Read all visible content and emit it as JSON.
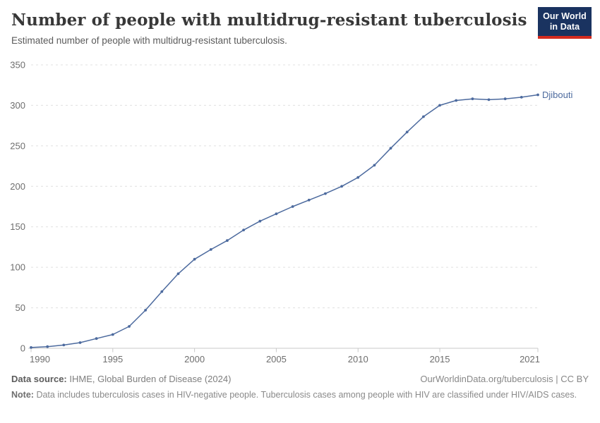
{
  "header": {
    "title": "Number of people with multidrug-resistant tuberculosis",
    "subtitle": "Estimated number of people with multidrug-resistant tuberculosis.",
    "logo": {
      "line1": "Our World",
      "line2": "in Data"
    }
  },
  "chart_data": {
    "type": "line",
    "title": "Number of people with multidrug-resistant tuberculosis",
    "x": [
      1990,
      1991,
      1992,
      1993,
      1994,
      1995,
      1996,
      1997,
      1998,
      1999,
      2000,
      2001,
      2002,
      2003,
      2004,
      2005,
      2006,
      2007,
      2008,
      2009,
      2010,
      2011,
      2012,
      2013,
      2014,
      2015,
      2016,
      2017,
      2018,
      2019,
      2020,
      2021
    ],
    "series": [
      {
        "name": "Djibouti",
        "color": "#4c6a9e",
        "values": [
          1,
          2,
          4,
          7,
          12,
          17,
          27,
          47,
          70,
          92,
          110,
          122,
          133,
          146,
          157,
          166,
          175,
          183,
          191,
          200,
          211,
          226,
          247,
          267,
          286,
          300,
          306,
          308,
          307,
          308,
          310,
          313
        ]
      }
    ],
    "xlim": [
      1990,
      2021
    ],
    "ylim": [
      0,
      350
    ],
    "x_ticks": [
      1990,
      1995,
      2000,
      2005,
      2010,
      2015,
      2021
    ],
    "y_ticks": [
      0,
      50,
      100,
      150,
      200,
      250,
      300,
      350
    ],
    "grid": "horizontal-dashed",
    "legend_position": "end-of-line-label",
    "end_label": "Djibouti",
    "marker": "dot"
  },
  "footer": {
    "data_source_label": "Data source:",
    "data_source_value": "IHME, Global Burden of Disease (2024)",
    "attribution": "OurWorldinData.org/tuberculosis | CC BY",
    "note_label": "Note:",
    "note_value": "Data includes tuberculosis cases in HIV-negative people. Tuberculosis cases among people with HIV are classified under HIV/AIDS cases."
  },
  "colors": {
    "line": "#4c6a9e",
    "grid": "#e0e0e0",
    "axis": "#c9c9c9",
    "tick_label": "#6e6e6e",
    "logo_bg": "#1a3360",
    "logo_red": "#d42b1f"
  }
}
